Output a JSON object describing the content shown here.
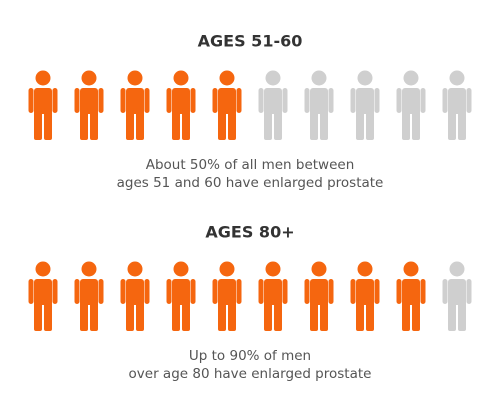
{
  "chart_data": [
    {
      "type": "pictograph",
      "title": "AGES 51-60",
      "caption": [
        "About 50% of all men between",
        "ages 51 and 60 have enlarged prostate"
      ],
      "value": 5,
      "total": 10,
      "color": "#f5660f",
      "empty_color": "#cfcfcf"
    },
    {
      "type": "pictograph",
      "title": "AGES 80+",
      "caption": [
        "Up to 90% of men",
        "over age 80 have enlarged prostate"
      ],
      "value": 9,
      "total": 10,
      "color": "#f5660f",
      "empty_color": "#cfcfcf"
    }
  ]
}
